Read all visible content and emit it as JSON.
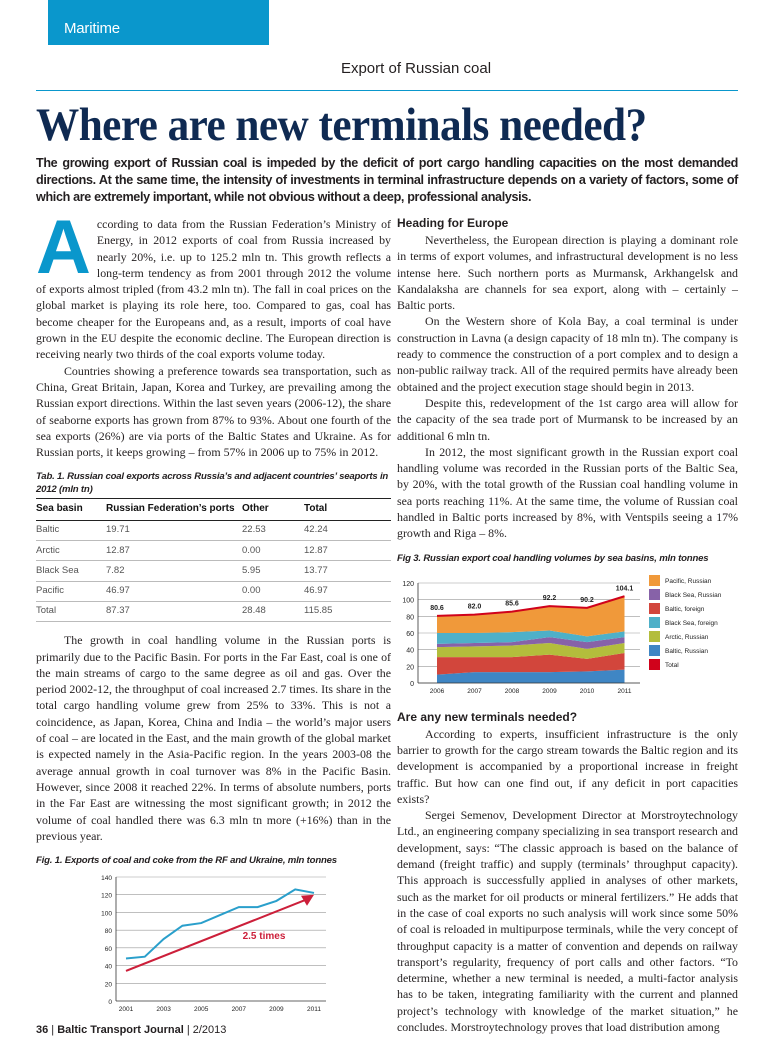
{
  "header": {
    "section": "Maritime",
    "kicker": "Export of Russian coal"
  },
  "article": {
    "title": "Where are new terminals needed?",
    "deck": "The growing export of Russian coal is impeded by the deficit of port cargo handling capacities on the most demanded directions. At the same time, the intensity of investments in terminal infrastructure depends on a variety of factors, some of which are extremely important, while not obvious without a deep, professional analysis.",
    "drop_cap": "A",
    "left_paragraphs": [
      "ccording to data from the Russian Federation’s Ministry of Energy, in 2012 exports of coal from Russia increased by nearly 20%, i.e. up to 125.2 mln tn. This growth reflects a long-term tendency as from 2001 through 2012 the volume of exports almost tripled (from 43.2 mln tn). The fall in coal prices on the global market is playing its role here, too. Compared to gas, coal has become cheaper for the Europeans and, as a result, imports of coal have grown in the EU despite the economic decline. The European direction is receiving nearly two thirds of the coal exports volume today.",
      "Countries showing a preference towards sea transportation, such as China, Great Britain, Japan, Korea and Turkey, are prevailing among the Russian export directions. Within the last seven years (2006-12), the share of seaborne exports has grown from 87% to 93%. About one fourth of the sea exports (26%) are via ports of the Baltic States and Ukraine. As for Russian ports, it keeps growing – from 57% in 2006 up to 75% in 2012.",
      "The growth in coal handling volume in the Russian ports is primarily due to the Pacific Basin. For ports in the Far East, coal is one of the main streams of cargo to the same degree as oil and gas. Over the period 2002-12, the throughput of coal increased 2.7 times. Its share in the total cargo handling volume grew from 25% to 33%. This is not a coincidence, as Japan, Korea, China and India – the world’s major users of coal – are located in the East, and the main growth of the global market is expected namely in the Asia-Pacific region. In the years 2003-08 the average annual growth in coal turnover was 8% in the Pacific Basin. However, since 2008 it reached 22%. In terms of absolute numbers, ports in the Far East are witnessing the most significant growth; in 2012 the volume of coal handled there was 6.3 mln tn more (+16%) than in the previous year."
    ],
    "heading_europe": "Heading for Europe",
    "europe_paragraphs": [
      "Nevertheless, the European direction is playing a dominant role in terms of export volumes, and infrastructural development is no less intense here. Such northern ports as Murmansk, Arkhangelsk and Kandalaksha are channels for sea export, along with – certainly – Baltic ports.",
      "On the Western shore of Kola Bay, a coal terminal is under construction in Lavna (a design capacity of 18 mln tn). The company is ready to commence the construction of a port complex and to design a non-public railway track. All of the required permits have already been obtained and the project execution stage should begin in 2013.",
      "Despite this, redevelopment of the 1st cargo area will allow for the capacity of the sea trade port of Murmansk to be increased by an additional 6 mln tn.",
      "In 2012, the most significant growth in the Russian export coal handling volume was recorded in the Russian ports of the Baltic Sea, by 20%, with the total growth of the Russian coal handling volume in sea ports reaching 11%. At the same time, the volume of Russian coal handled in Baltic ports increased by 8%, with Ventspils seeing a 17% growth and Riga – 8%."
    ],
    "heading_terminals": "Are any new terminals needed?",
    "terminals_paragraphs": [
      "According to experts, insufficient infrastructure is the only barrier to growth for the cargo stream towards the Baltic region and its development is accompanied by a proportional increase in freight traffic. But how can one find out, if any deficit in port capacities exists?",
      "Sergei Semenov, Development Director at Morstroytechnology Ltd., an engineering company specializing in sea transport research and development, says: “The classic approach is based on the balance of demand (freight traffic) and supply (terminals’ throughput capacity). This approach is successfully applied in analyses of other markets, such as the market for oil products or mineral fertilizers.” He adds that in the case of coal exports no such analysis will work since some 50% of coal is reloaded in multipurpose terminals, while the very concept of throughput capacity is a matter of convention and depends on railway transport’s regularity, frequency of port calls and other factors. “To determine, whether a new terminal is needed, a multi-factor analysis has to be taken, integrating familiarity with the current and planned project’s technology with knowledge of the market situation,” he concludes. Morstroytechnology proves that load distribution among"
    ]
  },
  "table": {
    "caption": "Tab. 1. Russian coal exports across Russia’s and adjacent countries’ seaports in 2012 (mln tn)",
    "headers": [
      "Sea basin",
      "Russian Federation’s ports",
      "Other",
      "Total"
    ],
    "rows": [
      [
        "Baltic",
        "19.71",
        "22.53",
        "42.24"
      ],
      [
        "Arctic",
        "12.87",
        "0.00",
        "12.87"
      ],
      [
        "Black Sea",
        "7.82",
        "5.95",
        "13.77"
      ],
      [
        "Pacific",
        "46.97",
        "0.00",
        "46.97"
      ],
      [
        "Total",
        "87.37",
        "28.48",
        "115.85"
      ]
    ]
  },
  "footer": {
    "page": "36",
    "journal": "Baltic Transport Journal",
    "issue": "2/2013"
  },
  "colors": {
    "accent": "#0a97cc",
    "title": "#0f2a52"
  },
  "chart_data": [
    {
      "type": "area",
      "title": "Fig 3. Russian export coal handling volumes by sea basins, mln tonnes",
      "x": [
        "2006",
        "2007",
        "2008",
        "2009",
        "2010",
        "2011"
      ],
      "ylim": [
        0,
        120
      ],
      "yticks": [
        "0",
        "20",
        "40",
        "60",
        "80",
        "100",
        "120"
      ],
      "stacked": true,
      "series": [
        {
          "name": "Baltic, Russian",
          "color": "#3f86c4",
          "values": [
            10,
            13,
            13,
            13,
            14,
            16
          ]
        },
        {
          "name": "Baltic, foreign",
          "color": "#d2463c",
          "values": [
            21,
            18,
            18,
            21,
            15,
            20
          ]
        },
        {
          "name": "Arctic, Russian",
          "color": "#b3bd3c",
          "values": [
            12,
            13,
            14,
            14,
            12,
            12
          ]
        },
        {
          "name": "Black Sea, Russian",
          "color": "#8762a8",
          "values": [
            4,
            4,
            4,
            7,
            8,
            7
          ]
        },
        {
          "name": "Black Sea, foreign",
          "color": "#4eb0c8",
          "values": [
            13,
            12,
            12,
            8,
            7,
            7
          ]
        },
        {
          "name": "Pacific, Russian",
          "color": "#f0993a",
          "values": [
            20.6,
            22,
            24.6,
            29.2,
            34.2,
            42.1
          ]
        }
      ],
      "total": {
        "name": "Total",
        "color": "#d0021b",
        "values": [
          80.6,
          82.0,
          85.6,
          92.2,
          90.2,
          104.1
        ],
        "labels": [
          "80.6",
          "82.0",
          "85.6",
          "92.2",
          "90.2",
          "104.1"
        ]
      },
      "legend": [
        "Pacific, Russian",
        "Black Sea, Russian",
        "Baltic, foreign",
        "Black Sea, foreign",
        "Arctic, Russian",
        "Baltic, Russian",
        "Total"
      ],
      "legend_position": "right",
      "grid": true
    },
    {
      "type": "line",
      "title": "Fig. 1. Exports of coal and coke from the RF and Ukraine, mln tonnes",
      "x": [
        2001,
        2002,
        2003,
        2004,
        2005,
        2006,
        2007,
        2008,
        2009,
        2010,
        2011
      ],
      "xticks": [
        "2001",
        "2003",
        "2005",
        "2007",
        "2009",
        "2011"
      ],
      "ylim": [
        0,
        140
      ],
      "yticks": [
        "0",
        "20",
        "40",
        "60",
        "80",
        "100",
        "120",
        "140"
      ],
      "series": [
        {
          "name": "Exports",
          "color": "#2a9fcb",
          "values": [
            48,
            50,
            70,
            85,
            88,
            97,
            106,
            106,
            113,
            126,
            122
          ]
        }
      ],
      "trend": {
        "from": [
          2001,
          34
        ],
        "to": [
          2011,
          120
        ],
        "color": "#cc1f3a",
        "label": "2.5 times"
      },
      "grid": true
    }
  ]
}
